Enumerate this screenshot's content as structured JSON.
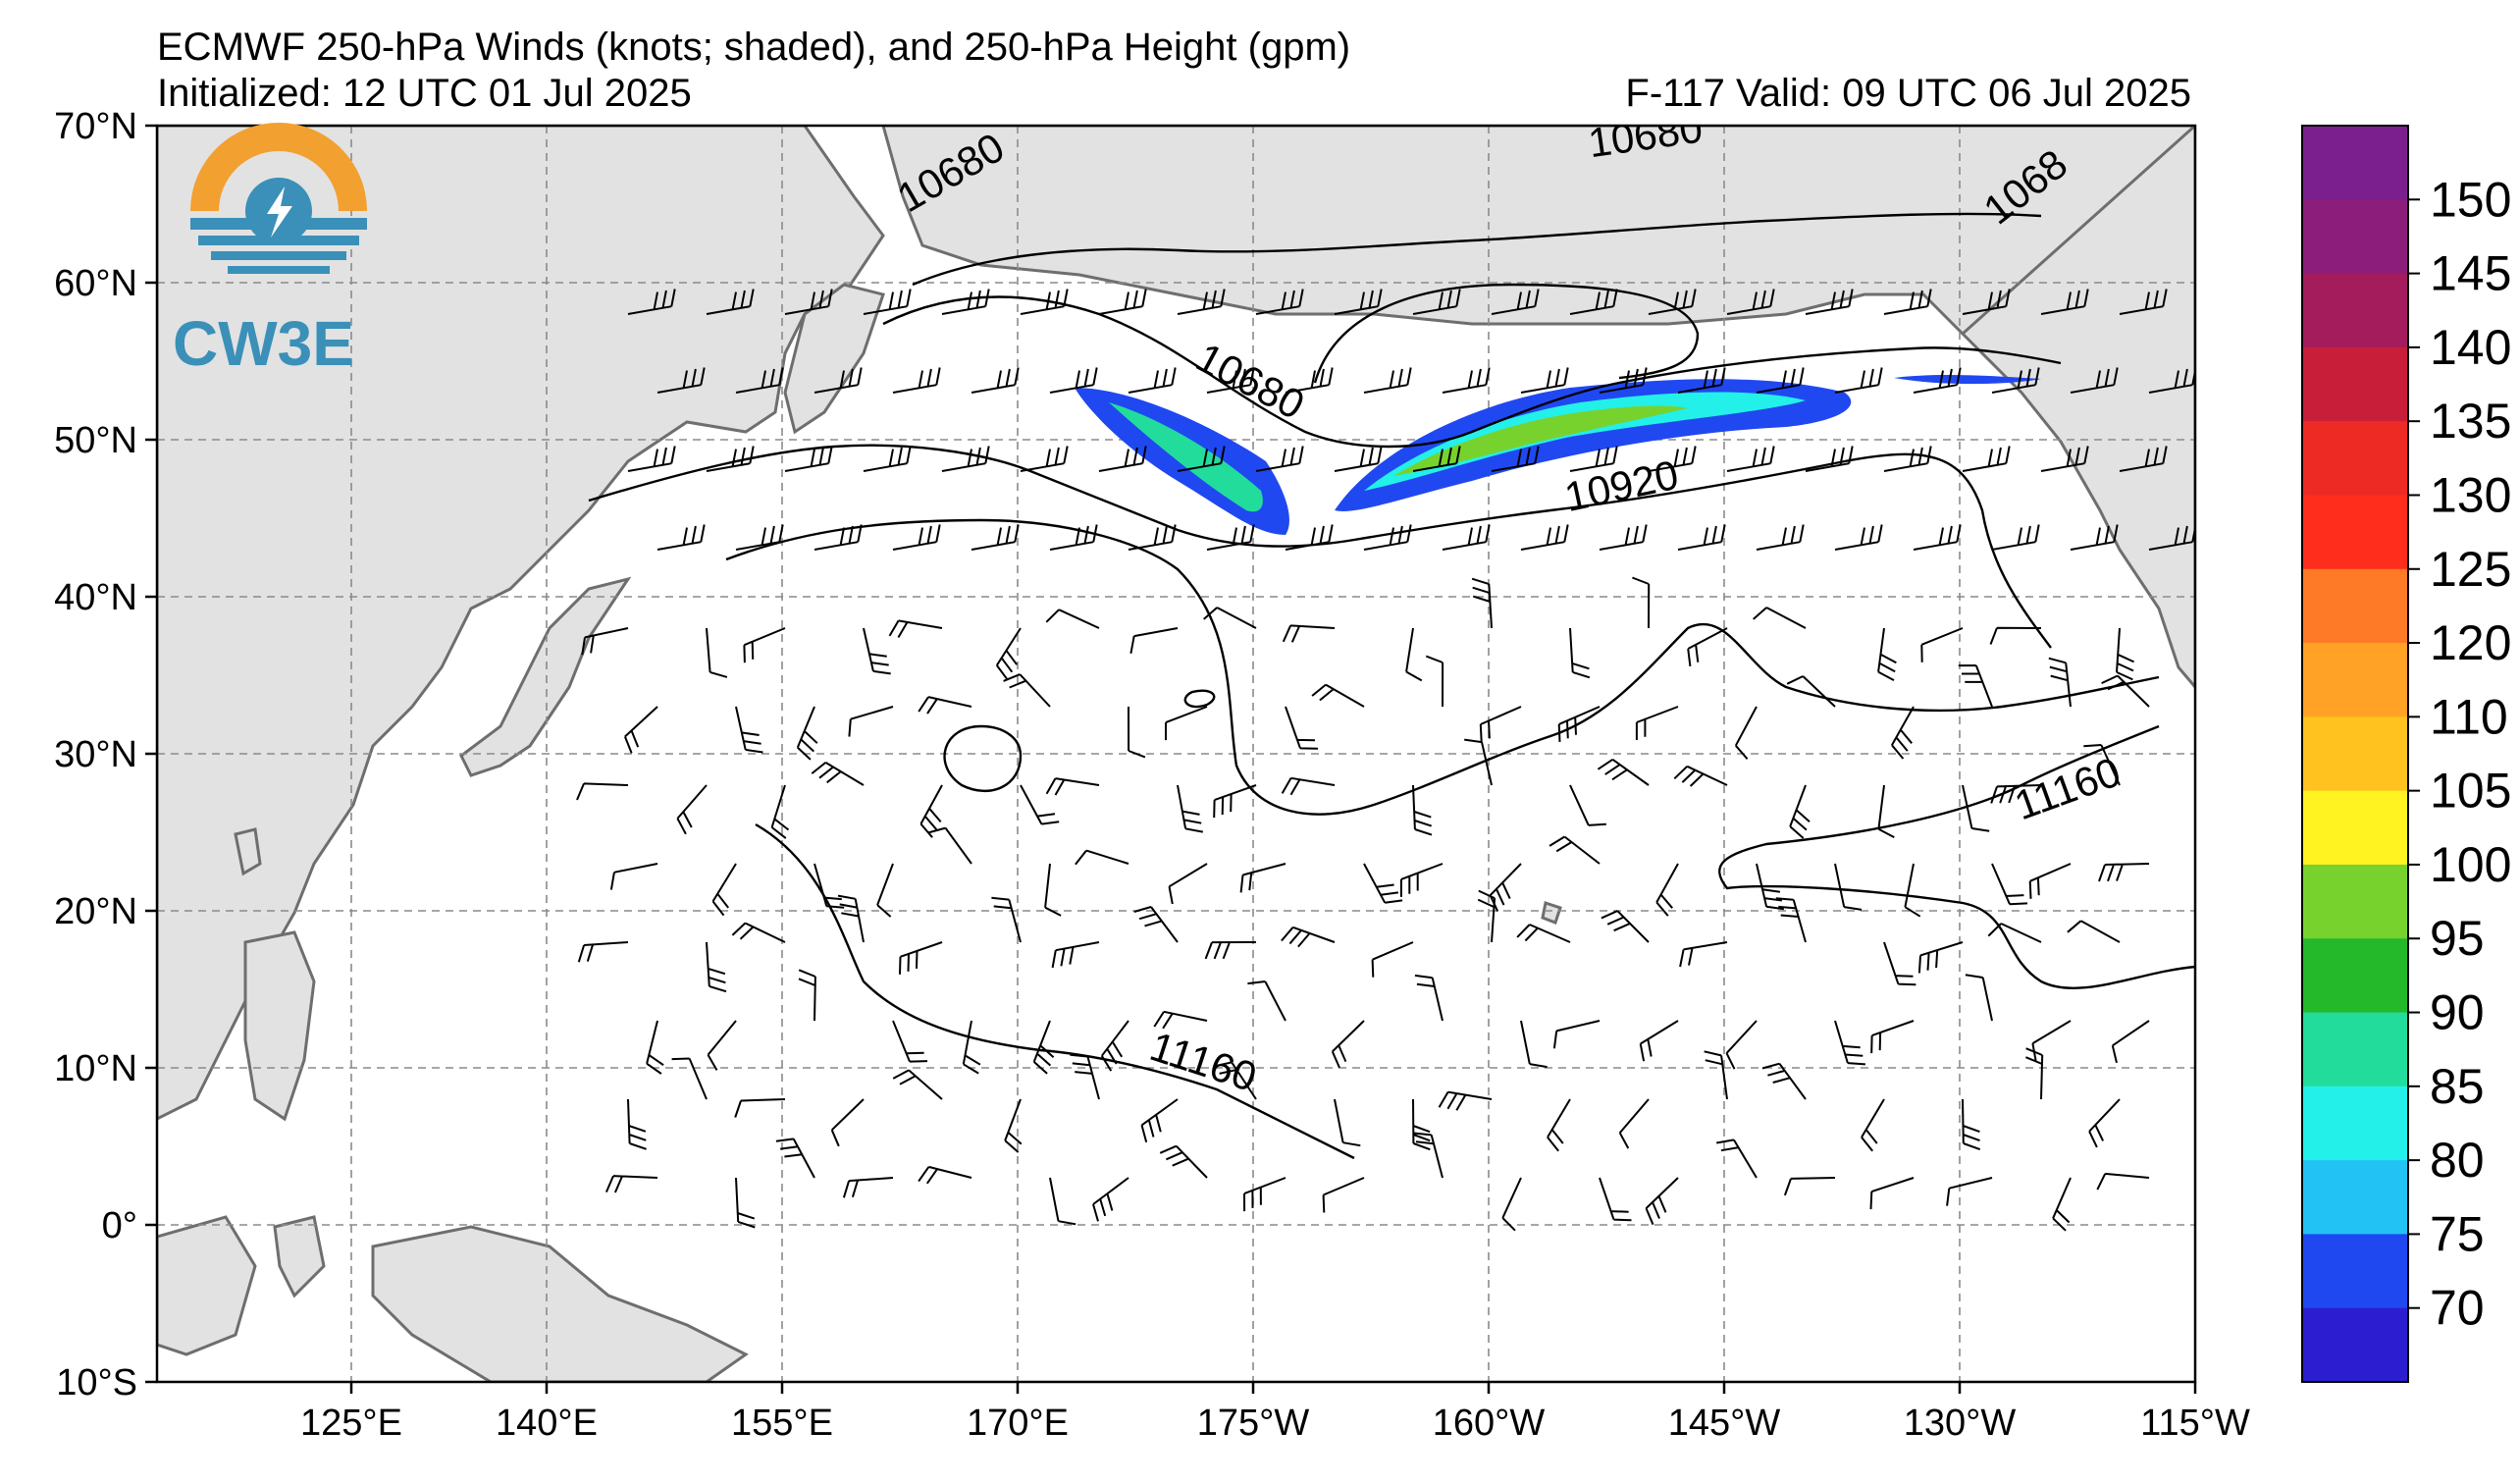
{
  "header": {
    "title": "ECMWF 250-hPa Winds (knots; shaded), and 250-hPa Height (gpm)",
    "initialized": "Initialized: 12 UTC 01 Jul 2025",
    "valid": "F-117  Valid: 09 UTC 06 Jul 2025"
  },
  "logo": {
    "text": "CW3E"
  },
  "axes": {
    "lat_labels": [
      "70°N",
      "60°N",
      "50°N",
      "40°N",
      "30°N",
      "20°N",
      "10°N",
      "0°",
      "10°S"
    ],
    "lon_labels": [
      "125°E",
      "140°E",
      "155°E",
      "170°E",
      "175°W",
      "160°W",
      "145°W",
      "130°W",
      "115°W"
    ]
  },
  "contour_labels": [
    {
      "text": "10680"
    },
    {
      "text": "10680"
    },
    {
      "text": "1068"
    },
    {
      "text": "10680"
    },
    {
      "text": "10920"
    },
    {
      "text": "11160"
    },
    {
      "text": "11160"
    }
  ],
  "colorbar": {
    "labels": [
      "150",
      "145",
      "140",
      "135",
      "130",
      "125",
      "120",
      "110",
      "105",
      "100",
      "95",
      "90",
      "85",
      "80",
      "75",
      "70"
    ],
    "colors": [
      "#7b1f8f",
      "#8c1d7a",
      "#a51c5c",
      "#c81e3a",
      "#ee2a24",
      "#ff2d1b",
      "#ff7a26",
      "#ffa225",
      "#ffc21e",
      "#fff321",
      "#78d22d",
      "#24b82b",
      "#22dc9c",
      "#23f0e8",
      "#22c2f4",
      "#2048f1",
      "#2c1ed0"
    ]
  },
  "colors": {
    "land": "#e2e2e2",
    "coast": "#6e6e6e",
    "grid": "#8a8a8a"
  }
}
